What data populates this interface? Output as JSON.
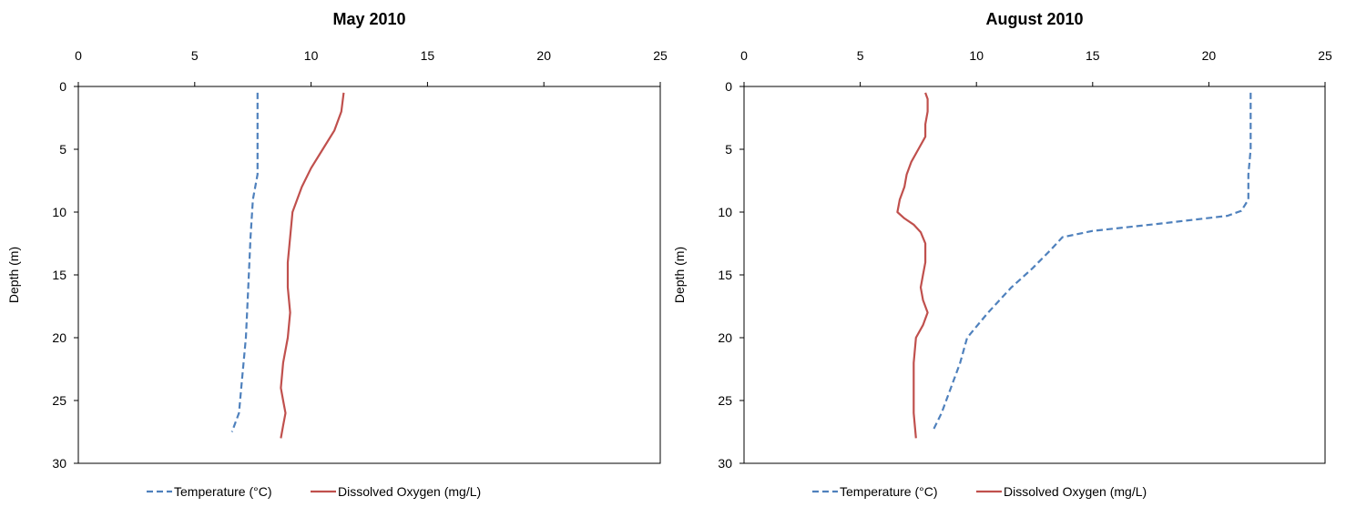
{
  "chart_data": [
    {
      "type": "line",
      "title": "May 2010",
      "xlabel": "",
      "ylabel": "Depth (m)",
      "xlim": [
        0,
        25
      ],
      "ylim": [
        0,
        30
      ],
      "y_inverted": true,
      "x_axis_position": "top",
      "xticks": [
        "0",
        "5",
        "10",
        "15",
        "20",
        "25"
      ],
      "yticks": [
        "0",
        "5",
        "10",
        "15",
        "20",
        "25",
        "30"
      ],
      "grid": false,
      "legend_position": "bottom",
      "series": [
        {
          "name": "Temperature (°C)",
          "style": "dashed",
          "color": "#4f81bd",
          "points": [
            [
              7.7,
              0.5
            ],
            [
              7.7,
              5
            ],
            [
              7.7,
              7
            ],
            [
              7.5,
              9
            ],
            [
              7.4,
              12
            ],
            [
              7.3,
              16
            ],
            [
              7.2,
              20
            ],
            [
              7.0,
              24
            ],
            [
              6.9,
              26
            ],
            [
              6.6,
              27.5
            ]
          ]
        },
        {
          "name": "Dissolved Oxygen (mg/L)",
          "style": "solid",
          "color": "#c0504d",
          "points": [
            [
              11.4,
              0.5
            ],
            [
              11.3,
              2
            ],
            [
              11.0,
              3.5
            ],
            [
              10.5,
              5
            ],
            [
              10.0,
              6.5
            ],
            [
              9.6,
              8
            ],
            [
              9.2,
              10
            ],
            [
              9.1,
              12
            ],
            [
              9.0,
              14
            ],
            [
              9.0,
              16
            ],
            [
              9.1,
              18
            ],
            [
              9.0,
              20
            ],
            [
              8.8,
              22
            ],
            [
              8.7,
              24
            ],
            [
              8.8,
              25
            ],
            [
              8.9,
              26
            ],
            [
              8.8,
              27
            ],
            [
              8.7,
              28
            ]
          ]
        }
      ]
    },
    {
      "type": "line",
      "title": "August 2010",
      "xlabel": "",
      "ylabel": "Depth (m)",
      "xlim": [
        0,
        25
      ],
      "ylim": [
        0,
        30
      ],
      "y_inverted": true,
      "x_axis_position": "top",
      "xticks": [
        "0",
        "5",
        "10",
        "15",
        "20",
        "25"
      ],
      "yticks": [
        "0",
        "5",
        "10",
        "15",
        "20",
        "25",
        "30"
      ],
      "grid": false,
      "legend_position": "bottom",
      "series": [
        {
          "name": "Temperature (°C)",
          "style": "dashed",
          "color": "#4f81bd",
          "points": [
            [
              21.8,
              0.5
            ],
            [
              21.8,
              3
            ],
            [
              21.8,
              5
            ],
            [
              21.7,
              7
            ],
            [
              21.7,
              9
            ],
            [
              21.4,
              9.9
            ],
            [
              20.8,
              10.3
            ],
            [
              18.0,
              10.9
            ],
            [
              15.0,
              11.5
            ],
            [
              13.7,
              12
            ],
            [
              13.2,
              13
            ],
            [
              12.4,
              14.5
            ],
            [
              11.5,
              16
            ],
            [
              10.5,
              18
            ],
            [
              9.6,
              20
            ],
            [
              9.3,
              22
            ],
            [
              8.9,
              24
            ],
            [
              8.5,
              26
            ],
            [
              8.1,
              27.5
            ]
          ]
        },
        {
          "name": "Dissolved Oxygen (mg/L)",
          "style": "solid",
          "color": "#c0504d",
          "points": [
            [
              7.8,
              0.5
            ],
            [
              7.9,
              1
            ],
            [
              7.9,
              2
            ],
            [
              7.8,
              3
            ],
            [
              7.8,
              4
            ],
            [
              7.5,
              5
            ],
            [
              7.2,
              6
            ],
            [
              7.0,
              7
            ],
            [
              6.9,
              8
            ],
            [
              6.7,
              9
            ],
            [
              6.6,
              10
            ],
            [
              6.9,
              10.5
            ],
            [
              7.3,
              11
            ],
            [
              7.6,
              11.6
            ],
            [
              7.8,
              12.5
            ],
            [
              7.8,
              14
            ],
            [
              7.7,
              15
            ],
            [
              7.6,
              16
            ],
            [
              7.7,
              17
            ],
            [
              7.9,
              18
            ],
            [
              7.7,
              19
            ],
            [
              7.4,
              20
            ],
            [
              7.3,
              22
            ],
            [
              7.3,
              24
            ],
            [
              7.3,
              26
            ],
            [
              7.4,
              28
            ]
          ]
        }
      ]
    }
  ]
}
